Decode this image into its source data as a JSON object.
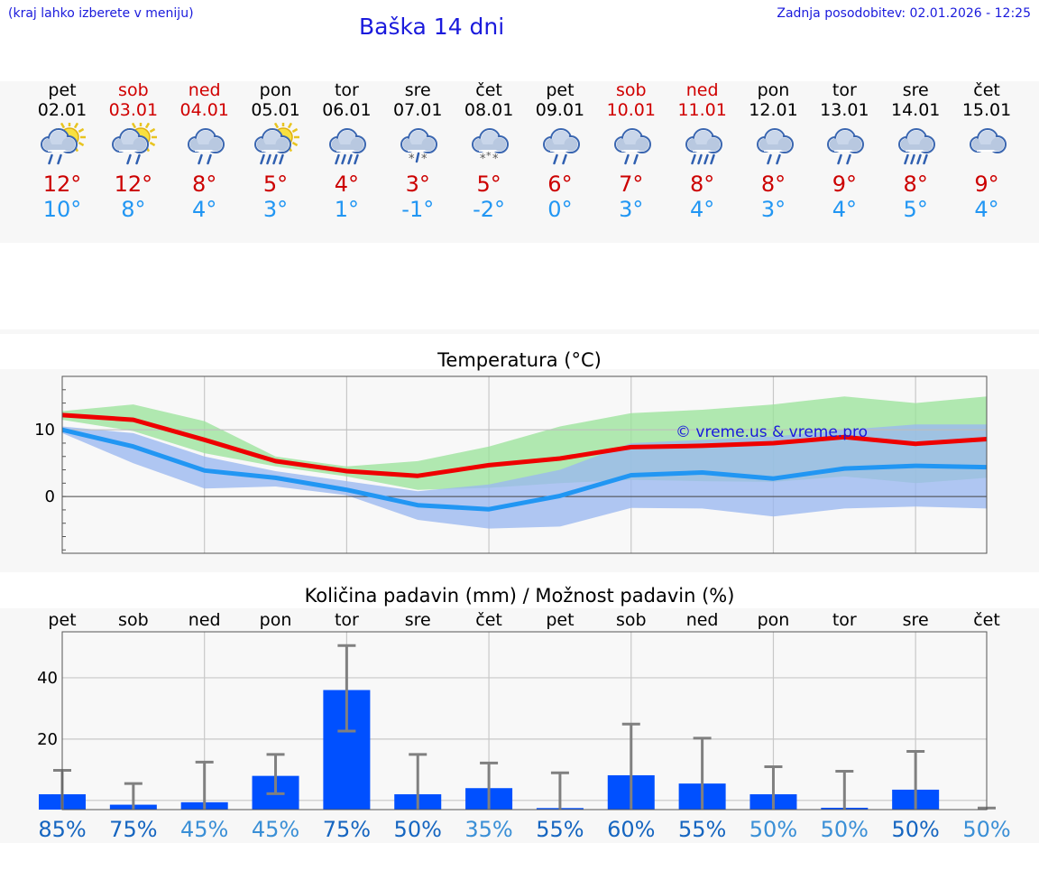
{
  "header": {
    "menu_note": "(kraj lahko izberete v meniju)",
    "title": "Baška 14 dni",
    "updated": "Zadnja posodobitev: 02.01.2026 - 12:25"
  },
  "forecast": [
    {
      "day": "pet",
      "date": "02.01",
      "weekend": false,
      "icon": "sun-cloud-rain-icon",
      "tmax": "12°",
      "tmin": "10°"
    },
    {
      "day": "sob",
      "date": "03.01",
      "weekend": true,
      "icon": "sun-cloud-light-rain-icon",
      "tmax": "12°",
      "tmin": "8°"
    },
    {
      "day": "ned",
      "date": "04.01",
      "weekend": true,
      "icon": "cloud-rain-icon",
      "tmax": "8°",
      "tmin": "4°"
    },
    {
      "day": "pon",
      "date": "05.01",
      "weekend": false,
      "icon": "sun-cloud-heavy-rain-icon",
      "tmax": "5°",
      "tmin": "3°"
    },
    {
      "day": "tor",
      "date": "06.01",
      "weekend": false,
      "icon": "cloud-heavy-rain-icon",
      "tmax": "4°",
      "tmin": "1°"
    },
    {
      "day": "sre",
      "date": "07.01",
      "weekend": false,
      "icon": "cloud-sleet-icon",
      "tmax": "3°",
      "tmin": "-1°"
    },
    {
      "day": "čet",
      "date": "08.01",
      "weekend": false,
      "icon": "cloud-snow-icon",
      "tmax": "5°",
      "tmin": "-2°"
    },
    {
      "day": "pet",
      "date": "09.01",
      "weekend": false,
      "icon": "cloud-rain-icon",
      "tmax": "6°",
      "tmin": "0°"
    },
    {
      "day": "sob",
      "date": "10.01",
      "weekend": true,
      "icon": "cloud-rain-icon",
      "tmax": "7°",
      "tmin": "3°"
    },
    {
      "day": "ned",
      "date": "11.01",
      "weekend": true,
      "icon": "cloud-heavy-rain-icon",
      "tmax": "8°",
      "tmin": "4°"
    },
    {
      "day": "pon",
      "date": "12.01",
      "weekend": false,
      "icon": "cloud-light-rain-icon",
      "tmax": "8°",
      "tmin": "3°"
    },
    {
      "day": "tor",
      "date": "13.01",
      "weekend": false,
      "icon": "cloud-rain-icon",
      "tmax": "9°",
      "tmin": "4°"
    },
    {
      "day": "sre",
      "date": "14.01",
      "weekend": false,
      "icon": "cloud-heavy-rain-icon",
      "tmax": "8°",
      "tmin": "5°"
    },
    {
      "day": "čet",
      "date": "15.01",
      "weekend": false,
      "icon": "cloud-icon",
      "tmax": "9°",
      "tmin": "4°"
    }
  ],
  "chart_data": [
    {
      "type": "line",
      "title": "Temperatura (°C)",
      "xlabel": "",
      "ylabel": "",
      "ylim": [
        -8.5,
        18
      ],
      "y_ticks": [
        0,
        10
      ],
      "y_tick_labels": [
        "0",
        "10"
      ],
      "grid": true,
      "watermark": "© vreme.us & vreme.pro",
      "x": [
        "02.01",
        "03.01",
        "04.01",
        "05.01",
        "06.01",
        "07.01",
        "08.01",
        "09.01",
        "10.01",
        "11.01",
        "12.01",
        "13.01",
        "14.01",
        "15.01"
      ],
      "series": [
        {
          "name": "max",
          "color": "#ee0000",
          "values": [
            12.2,
            11.5,
            8.5,
            5.3,
            3.8,
            3.1,
            4.7,
            5.7,
            7.4,
            7.6,
            8.0,
            8.9,
            7.9,
            8.6
          ]
        },
        {
          "name": "min",
          "color": "#2196f3",
          "values": [
            10.0,
            7.5,
            3.9,
            2.8,
            1.0,
            -1.3,
            -1.9,
            0.1,
            3.2,
            3.6,
            2.7,
            4.2,
            4.6,
            4.4
          ]
        },
        {
          "name": "max range",
          "color": "#9be39b",
          "low": [
            11.5,
            9.8,
            6.5,
            4.5,
            3.0,
            1.0,
            1.3,
            2.0,
            2.5,
            2.3,
            2.2,
            3.0,
            2.0,
            2.8
          ],
          "high": [
            12.8,
            13.8,
            11.3,
            6.0,
            4.5,
            5.3,
            7.5,
            10.5,
            12.5,
            13.0,
            13.8,
            15.0,
            14.0,
            15.0
          ]
        },
        {
          "name": "min range",
          "color": "#9ab7f0",
          "low": [
            9.5,
            5.0,
            1.2,
            1.5,
            0.2,
            -3.5,
            -4.8,
            -4.5,
            -1.7,
            -1.8,
            -3.0,
            -1.8,
            -1.5,
            -1.8
          ],
          "high": [
            10.5,
            9.5,
            6.0,
            3.8,
            2.3,
            0.8,
            1.8,
            4.0,
            8.0,
            8.5,
            9.0,
            10.0,
            10.8,
            10.8
          ]
        }
      ]
    },
    {
      "type": "bar",
      "title": "Količina padavin (mm) / Možnost padavin (%)",
      "xlabel": "",
      "ylabel": "",
      "ylim": [
        -3,
        55
      ],
      "y_ticks": [
        0,
        20,
        40
      ],
      "y_tick_labels": [
        "0",
        "20",
        "40"
      ],
      "grid": true,
      "categories": [
        "pet",
        "sob",
        "ned",
        "pon",
        "tor",
        "sre",
        "čet",
        "pet",
        "sob",
        "ned",
        "pon",
        "tor",
        "sre",
        "čet"
      ],
      "series": [
        {
          "name": "Količina padavin (mm)",
          "color": "#0050ff",
          "values": [
            2.0,
            -1.4,
            -0.6,
            8.0,
            36.0,
            2.0,
            4.0,
            -2.5,
            8.2,
            5.5,
            2.0,
            -2.4,
            3.5,
            -3.0
          ]
        }
      ],
      "error_high": [
        9.8,
        5.5,
        12.5,
        15.0,
        50.5,
        15.0,
        12.2,
        9.0,
        24.9,
        20.3,
        11.0,
        9.5,
        16.0,
        -2.5
      ],
      "error_low": [
        -3.0,
        -3.0,
        -3.0,
        2.2,
        22.6,
        -3.0,
        -3.0,
        -3.0,
        -3.0,
        -3.0,
        -3.0,
        -3.0,
        -3.0,
        -3.0
      ],
      "probability_labels": [
        "85%",
        "75%",
        "45%",
        "45%",
        "75%",
        "50%",
        "35%",
        "55%",
        "60%",
        "55%",
        "50%",
        "50%",
        "50%",
        "50%"
      ],
      "probability_colors": [
        "#1565c0",
        "#1565c0",
        "#3a8fd6",
        "#3a8fd6",
        "#1565c0",
        "#1565c0",
        "#3a8fd6",
        "#1565c0",
        "#1565c0",
        "#1565c0",
        "#3a8fd6",
        "#3a8fd6",
        "#1565c0",
        "#3a8fd6"
      ]
    }
  ]
}
